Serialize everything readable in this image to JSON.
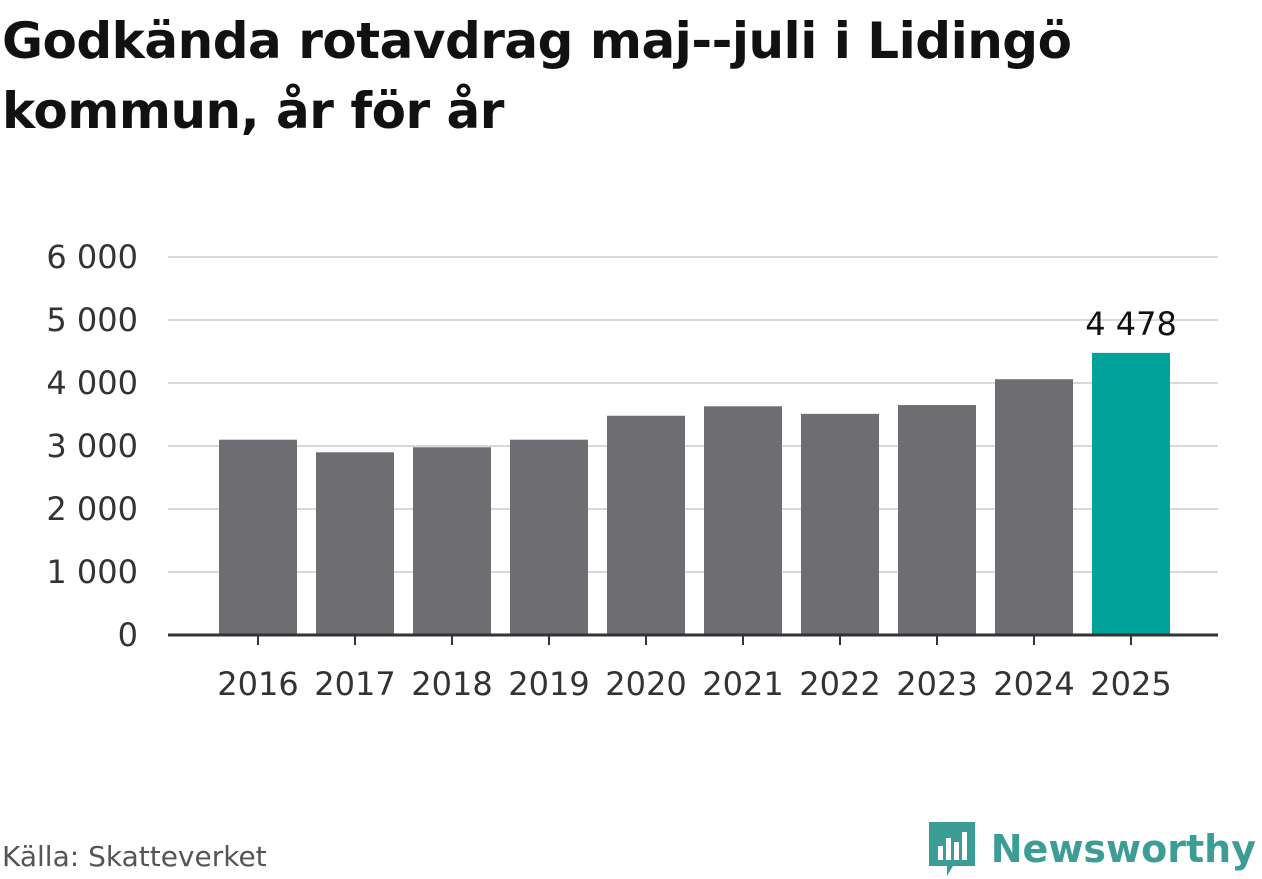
{
  "title": "Godkända rotavdrag maj--juli i Lidingö kommun, år för år",
  "source": "Källa: Skatteverket",
  "brand": {
    "name": "Newsworthy",
    "logo_icon": "bar-chart-speech-bubble-icon"
  },
  "colors": {
    "bar": "#6e6d72",
    "highlight": "#00a29a",
    "grid": "#d9d9d9",
    "axis": "#333333",
    "brand": "#3c9c96"
  },
  "chart_data": {
    "type": "bar",
    "title": "Godkända rotavdrag maj--juli i Lidingö kommun, år för år",
    "xlabel": "",
    "ylabel": "",
    "categories": [
      "2016",
      "2017",
      "2018",
      "2019",
      "2020",
      "2021",
      "2022",
      "2023",
      "2024",
      "2025"
    ],
    "values": [
      3100,
      2900,
      2980,
      3100,
      3480,
      3630,
      3510,
      3650,
      4060,
      4478
    ],
    "highlight_index": 9,
    "data_labels": [
      {
        "index": 9,
        "text": "4 478"
      }
    ],
    "ylim": [
      0,
      6000
    ],
    "yticks": [
      0,
      1000,
      2000,
      3000,
      4000,
      5000,
      6000
    ],
    "ytick_labels": [
      "0",
      "1 000",
      "2 000",
      "3 000",
      "4 000",
      "5 000",
      "6 000"
    ],
    "grid": true,
    "legend": "none"
  }
}
